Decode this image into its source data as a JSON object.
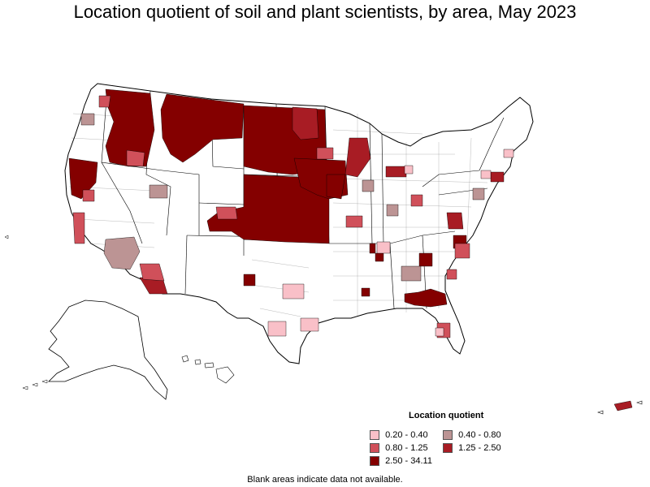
{
  "title": "Location quotient of soil and plant scientists, by area, May 2023",
  "legend": {
    "title": "Location quotient",
    "items": [
      {
        "label": "0.20 - 0.40",
        "color": "#f9c0c8"
      },
      {
        "label": "0.40 - 0.80",
        "color": "#bc9494"
      },
      {
        "label": "0.80 - 1.25",
        "color": "#d0505a"
      },
      {
        "label": "1.25 - 2.50",
        "color": "#a81c24"
      },
      {
        "label": "2.50 - 34.11",
        "color": "#840000"
      }
    ]
  },
  "note": "Blank areas indicate data not available.",
  "colors": {
    "no_data": "#ffffff",
    "border": "#000000"
  }
}
